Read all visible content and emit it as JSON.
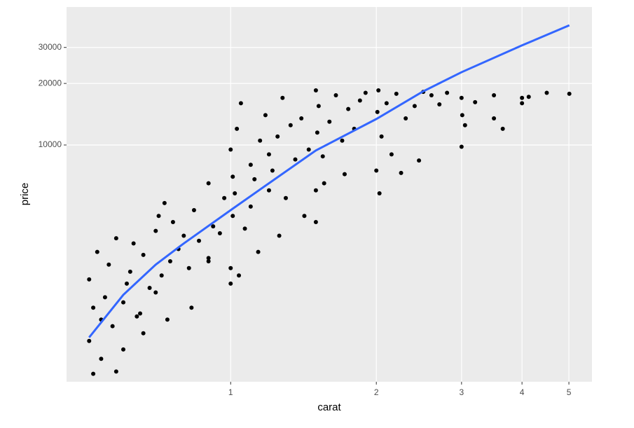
{
  "chart_data": {
    "type": "scatter",
    "x_label": "carat",
    "y_label": "price",
    "xlog": true,
    "ylog": true,
    "xlim": [
      0.458,
      5.58
    ],
    "ylim": [
      695,
      47300
    ],
    "xticks": [
      1,
      2,
      3,
      4,
      5
    ],
    "yticks": [
      10000,
      20000,
      30000
    ],
    "grid": true,
    "point_color": "#000000",
    "x": [
      0.51,
      0.51,
      0.52,
      0.53,
      0.54,
      0.55,
      0.56,
      0.57,
      0.58,
      0.6,
      0.61,
      0.62,
      0.63,
      0.65,
      0.66,
      0.68,
      0.7,
      0.7,
      0.71,
      0.72,
      0.73,
      0.75,
      0.76,
      0.78,
      0.8,
      0.82,
      0.84,
      0.86,
      0.9,
      0.9,
      0.92,
      0.95,
      0.97,
      1.0,
      1.0,
      1.01,
      1.01,
      1.02,
      1.03,
      1.05,
      1.07,
      1.1,
      1.1,
      1.12,
      1.15,
      1.18,
      1.2,
      1.2,
      1.22,
      1.25,
      1.28,
      1.3,
      1.33,
      1.36,
      1.4,
      1.45,
      1.5,
      1.5,
      1.51,
      1.52,
      1.55,
      1.6,
      1.65,
      1.7,
      1.75,
      1.8,
      1.85,
      1.9,
      2.0,
      2.01,
      2.02,
      2.05,
      2.1,
      2.15,
      2.2,
      2.3,
      2.4,
      2.5,
      2.6,
      2.7,
      2.8,
      3.0,
      3.0,
      3.01,
      3.05,
      3.2,
      3.5,
      3.5,
      3.65,
      4.0,
      4.0,
      4.13,
      4.5,
      5.01,
      0.54,
      0.6,
      0.66,
      0.74,
      0.83,
      1.04,
      1.14,
      1.26,
      1.42,
      1.56,
      1.72,
      2.03,
      2.25,
      2.45,
      0.52,
      0.58,
      0.64,
      0.9,
      1.0,
      1.5
    ],
    "y": [
      1100,
      2200,
      1600,
      3000,
      1400,
      1800,
      2600,
      1300,
      3500,
      1700,
      2100,
      2400,
      3300,
      1500,
      2900,
      2000,
      1900,
      3800,
      4500,
      2300,
      5200,
      2700,
      4200,
      3100,
      3600,
      2500,
      4800,
      3400,
      2800,
      6500,
      4000,
      3700,
      5500,
      2500,
      9500,
      4500,
      7000,
      5800,
      12000,
      16000,
      3900,
      8000,
      5000,
      6800,
      10500,
      14000,
      6000,
      9000,
      7500,
      11000,
      17000,
      5500,
      12500,
      8500,
      13500,
      9500,
      6000,
      18500,
      11500,
      15500,
      8800,
      13000,
      17500,
      10500,
      15000,
      12000,
      16500,
      18000,
      7500,
      14500,
      18500,
      11000,
      16000,
      9000,
      17800,
      13500,
      15500,
      18200,
      17500,
      15800,
      18000,
      17000,
      9800,
      14000,
      12500,
      16200,
      17500,
      13500,
      12000,
      17000,
      16000,
      17200,
      18000,
      17800,
      900,
      1000,
      1200,
      1400,
      1600,
      2300,
      3000,
      3600,
      4500,
      6500,
      7200,
      5800,
      7300,
      8400,
      760,
      780,
      1450,
      2700,
      2100,
      4200
    ],
    "trend": {
      "color": "#3366ff",
      "x": [
        0.51,
        0.6,
        0.7,
        0.8,
        1.0,
        1.2,
        1.5,
        2.0,
        2.5,
        3.0,
        4.0,
        5.01
      ],
      "y": [
        1145,
        1850,
        2600,
        3300,
        4800,
        6500,
        9400,
        13400,
        18300,
        22700,
        30700,
        38500
      ]
    }
  }
}
